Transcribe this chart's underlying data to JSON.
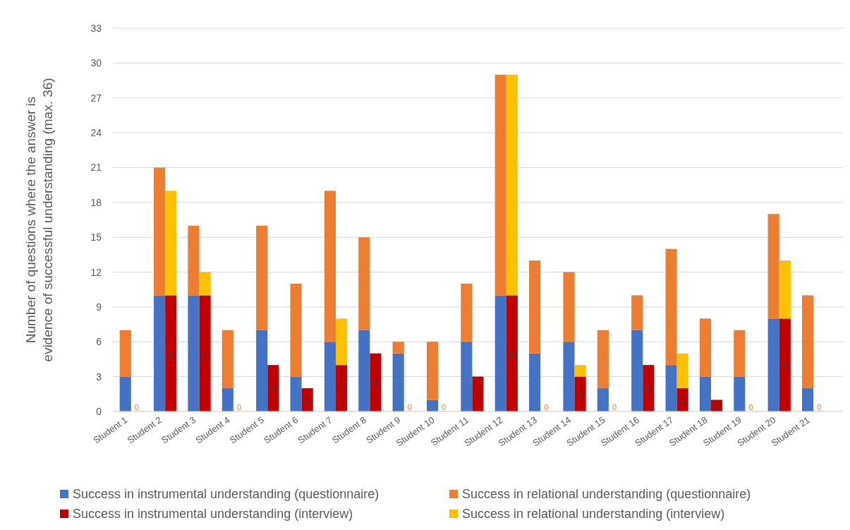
{
  "chart_data": {
    "type": "bar",
    "stacked": true,
    "ylabel": "Number of questions where the answer is evidence of successful understanding (max. 36)",
    "categories": [
      "Student 1",
      null,
      null,
      "Student 2",
      null,
      null,
      "Student 3",
      null,
      null,
      "Student 4",
      null,
      null,
      "Student 5",
      null,
      null,
      "Student 6",
      null,
      null,
      "Student 7",
      null,
      null,
      "Student 8",
      null,
      null,
      "Student 9",
      null,
      null,
      "Student 10",
      null,
      null,
      "Student 11",
      null,
      null,
      "Student 12",
      null,
      null,
      "Student 13",
      null,
      null,
      "Student 14",
      null,
      null,
      "Student 15",
      null,
      null,
      "Student 16",
      null,
      null,
      "Student 17",
      null,
      null,
      "Student 18",
      null,
      null,
      "Student 19",
      null,
      null,
      "Student 20",
      null,
      null,
      "Student 21",
      null,
      null
    ],
    "series": [
      {
        "name": "Success in instrumental understanding (questionnaire)",
        "color": "#4472c4",
        "values": [
          3,
          null,
          null,
          10,
          null,
          null,
          10,
          null,
          null,
          2,
          null,
          null,
          7,
          null,
          null,
          3,
          null,
          null,
          6,
          null,
          null,
          7,
          null,
          null,
          5,
          null,
          null,
          1,
          null,
          null,
          6,
          null,
          null,
          10,
          null,
          null,
          5,
          null,
          null,
          6,
          null,
          null,
          2,
          null,
          null,
          7,
          null,
          null,
          4,
          null,
          null,
          3,
          null,
          null,
          3,
          null,
          null,
          8,
          null,
          null,
          2,
          null,
          null
        ]
      },
      {
        "name": "Success in relational understanding (questionnaire)",
        "color": "#ed7d31",
        "values": [
          4,
          null,
          null,
          11,
          null,
          null,
          6,
          null,
          null,
          5,
          null,
          null,
          9,
          null,
          null,
          8,
          null,
          null,
          13,
          null,
          null,
          8,
          null,
          null,
          1,
          null,
          null,
          5,
          null,
          null,
          5,
          null,
          null,
          19,
          null,
          null,
          8,
          null,
          null,
          6,
          null,
          null,
          5,
          null,
          null,
          3,
          null,
          null,
          10,
          null,
          null,
          5,
          null,
          null,
          4,
          null,
          null,
          9,
          null,
          null,
          8,
          null,
          null
        ]
      },
      {
        "name": "Success in instrumental understanding (interview)",
        "color": "#c00000",
        "values": [
          null,
          0,
          null,
          null,
          10,
          null,
          null,
          10,
          null,
          null,
          0,
          null,
          null,
          4,
          null,
          null,
          2,
          null,
          null,
          4,
          null,
          null,
          5,
          null,
          null,
          0,
          null,
          null,
          0,
          null,
          null,
          3,
          null,
          null,
          10,
          null,
          null,
          0,
          null,
          null,
          3,
          null,
          null,
          0,
          null,
          null,
          4,
          null,
          null,
          2,
          null,
          null,
          1,
          null,
          null,
          0,
          null,
          null,
          8,
          null,
          null,
          0,
          null
        ],
        "value_labels": [
          null,
          "0",
          null,
          null,
          "10",
          null,
          null,
          "10",
          null,
          null,
          "0",
          null,
          null,
          "4",
          null,
          null,
          "2",
          null,
          null,
          "4",
          null,
          null,
          "5",
          null,
          null,
          "0",
          null,
          null,
          "0",
          null,
          null,
          "3",
          null,
          null,
          "10",
          null,
          null,
          "0",
          null,
          null,
          "3",
          null,
          null,
          "0",
          null,
          null,
          "4",
          null,
          null,
          "2",
          null,
          null,
          "1",
          null,
          null,
          "0",
          null,
          null,
          "8",
          null,
          null,
          "0",
          null
        ]
      },
      {
        "name": "Success in relational understanding (interview)",
        "color": "#ffc000",
        "values": [
          null,
          0,
          null,
          null,
          9,
          null,
          null,
          2,
          null,
          null,
          0,
          null,
          null,
          0,
          null,
          null,
          0,
          null,
          null,
          4,
          null,
          null,
          0,
          null,
          null,
          0,
          null,
          null,
          0,
          null,
          null,
          0,
          null,
          null,
          19,
          null,
          null,
          0,
          null,
          null,
          1,
          null,
          null,
          0,
          null,
          null,
          0,
          null,
          null,
          3,
          null,
          null,
          0,
          null,
          null,
          0,
          null,
          null,
          5,
          null,
          null,
          0,
          null
        ]
      }
    ],
    "ylim": [
      0,
      33
    ],
    "yticks": [
      0,
      3,
      6,
      9,
      12,
      15,
      18,
      21,
      24,
      27,
      30,
      33
    ],
    "grid": "y",
    "legend": "bottom"
  }
}
